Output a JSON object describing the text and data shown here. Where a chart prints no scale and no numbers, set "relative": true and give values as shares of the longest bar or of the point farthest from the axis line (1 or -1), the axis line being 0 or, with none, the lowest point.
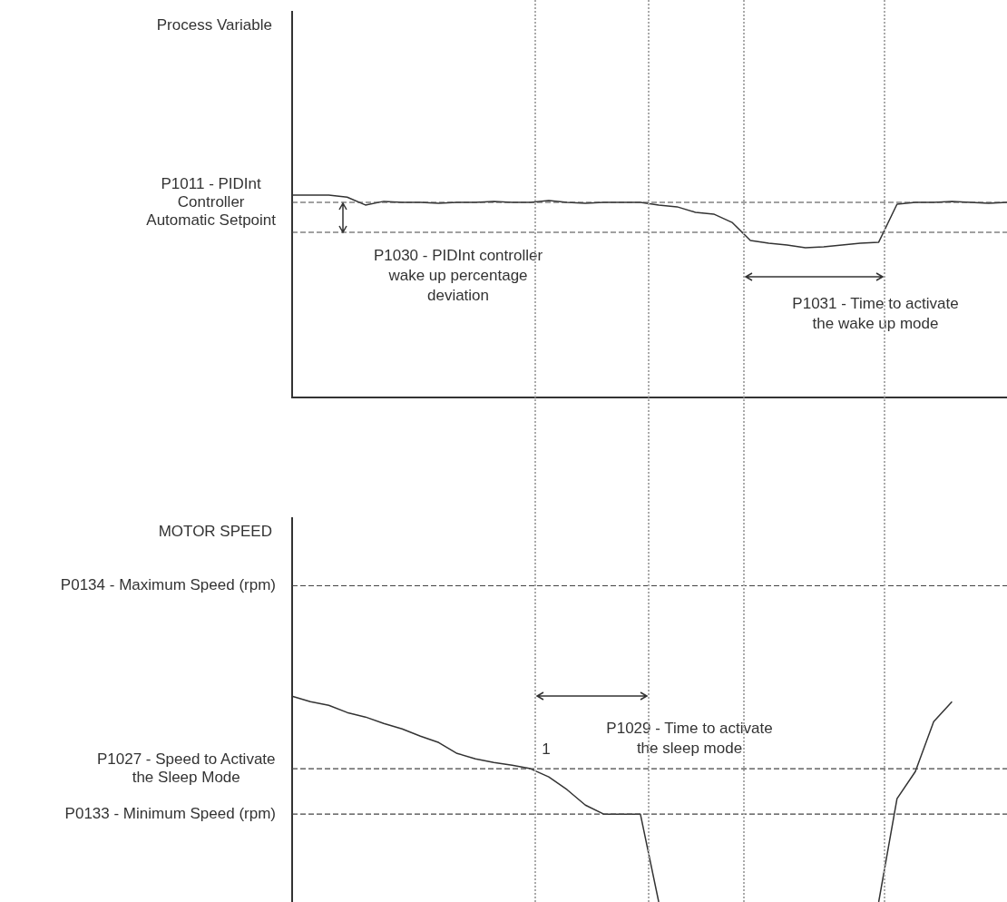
{
  "chart_data": [
    {
      "type": "line",
      "relative": true,
      "title": "Process Variable",
      "color": "#333333",
      "marker": "none",
      "categories": [
        null,
        null,
        null,
        null,
        null,
        null,
        null,
        null,
        null,
        null,
        null,
        null,
        null,
        null,
        null,
        null,
        null,
        null,
        null,
        null,
        null,
        null,
        null,
        null,
        null,
        null,
        null,
        null,
        null,
        null,
        null,
        null,
        null,
        null,
        null,
        null,
        null,
        null,
        null,
        null
      ],
      "values": [
        1.0,
        1.0,
        1.0,
        0.99,
        0.951,
        0.969,
        0.964,
        0.964,
        0.96,
        0.964,
        0.964,
        0.969,
        0.964,
        0.964,
        0.973,
        0.964,
        0.96,
        0.964,
        0.964,
        0.964,
        0.951,
        0.942,
        0.915,
        0.906,
        0.865,
        0.776,
        0.762,
        0.753,
        0.74,
        0.744,
        0.753,
        0.762,
        0.767,
        0.955,
        0.964,
        0.964,
        0.969,
        0.964,
        0.96,
        0.964
      ],
      "ref_lines": [
        {
          "axis": "y",
          "value": 0.964,
          "label": "P1011 - PIDInt Controller Automatic Setpoint"
        },
        {
          "axis": "y",
          "value": 0.816
        }
      ],
      "annotations": [
        "P1030 - PIDInt controller wake up percentage deviation",
        "P1031 - Time to activate the wake up mode"
      ]
    },
    {
      "type": "line",
      "relative": true,
      "title": "MOTOR SPEED",
      "color": "#333333",
      "marker": "none",
      "categories": [
        null,
        null,
        null,
        null,
        null,
        null,
        null,
        null,
        null,
        null,
        null,
        null,
        null,
        null,
        null,
        null,
        null,
        null,
        null,
        null,
        null,
        null,
        null,
        null,
        null,
        null,
        null,
        null,
        null,
        null,
        null,
        null,
        null,
        null,
        null,
        null,
        null,
        null,
        null,
        null
      ],
      "values": [
        1.0,
        0.974,
        0.956,
        0.921,
        0.899,
        0.868,
        0.841,
        0.806,
        0.775,
        0.722,
        0.696,
        0.678,
        0.665,
        0.648,
        0.608,
        0.546,
        0.471,
        0.427,
        0.427,
        0.427,
        0,
        null,
        null,
        null,
        null,
        null,
        null,
        null,
        null,
        null,
        null,
        null,
        0,
        0.502,
        0.634,
        0.877,
        0.974,
        null,
        null,
        null
      ],
      "ref_lines": [
        {
          "axis": "y",
          "value": 1.537,
          "label": "P0134 - Maximum Speed (rpm)"
        },
        {
          "axis": "y",
          "value": 0.648,
          "label": "P1027 - Speed to Activate the Sleep Mode"
        },
        {
          "axis": "y",
          "value": 0.427,
          "label": "P0133 - Minimum Speed (rpm)"
        }
      ],
      "annotations": [
        "1",
        "P1029 - Time to activate the sleep mode"
      ]
    }
  ]
}
